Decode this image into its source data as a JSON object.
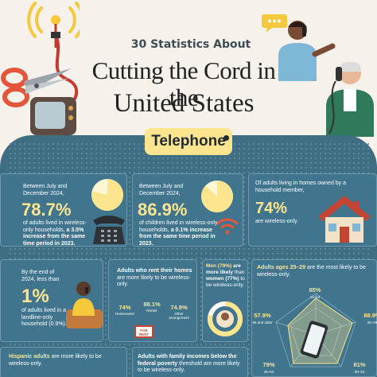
{
  "header": {
    "kicker": "30 Statistics About",
    "title_line1": "Cutting the Cord in the",
    "title_line2": "United States"
  },
  "section": {
    "label": "Telephone"
  },
  "cards": {
    "adult_wireless": {
      "intro": "Between July and December 2024,",
      "value": "78.7%",
      "body": "of adults lived in wireless-only households,",
      "highlight": "a 3.5% increase from the same time period in 2023.",
      "pie_fraction": 0.787
    },
    "children_wireless": {
      "intro": "Between July and December 2024,",
      "value": "86.9%",
      "body": "of children lived in wireless-only households,",
      "highlight": "a 0.1% increase from the same time period in 2023.",
      "pie_fraction": 0.869
    },
    "homeowners": {
      "intro": "Of adults living in homes owned by a household member,",
      "value": "74%",
      "body": "are wireless-only."
    },
    "landline_only": {
      "intro": "By the end of 2024, less than",
      "value": "1%",
      "body": "of adults lived in a landline-only household (0.9%)."
    },
    "renters": {
      "intro_bold": "Adults who rent their homes",
      "intro_rest": "are more likely to be wireless-only.",
      "bars": [
        {
          "value": "74%",
          "label": "Homeowner",
          "fraction": 0.74
        },
        {
          "value": "88.1%",
          "label": "Renter",
          "fraction": 0.881
        },
        {
          "value": "74.9%",
          "label": "Other arrangement",
          "fraction": 0.749
        }
      ],
      "sign": "FOR RENT"
    },
    "gender": {
      "men": "Men (79%)",
      "are_more": "are more likely",
      "than": "than",
      "women": "women (77%)",
      "tail": "to be wireless-only.",
      "ring_fraction": 0.79
    },
    "ages": {
      "intro_bold": "Adults ages 25–29",
      "intro_rest": "are the most likely to be wireless-only.",
      "radar": [
        {
          "value": "85%",
          "label": "18–24"
        },
        {
          "value": "88.9%",
          "label": "25–29"
        },
        {
          "value": "81%",
          "label": "30–34"
        },
        {
          "value": "79%",
          "label": "45–64"
        },
        {
          "value": "57.9%",
          "label": "65 and older"
        }
      ]
    },
    "hispanic": {
      "bold": "Hispanic adults",
      "rest": "are more likely to be wireless-only."
    },
    "income": {
      "bold": "Adults with family incomes below the federal poverty",
      "rest": "threshold are more likely to be wireless-only."
    }
  },
  "colors": {
    "panel": "#3f6e83",
    "accent": "#fde48f",
    "card_border": "#6d9ab0",
    "text": "#ffffff"
  }
}
